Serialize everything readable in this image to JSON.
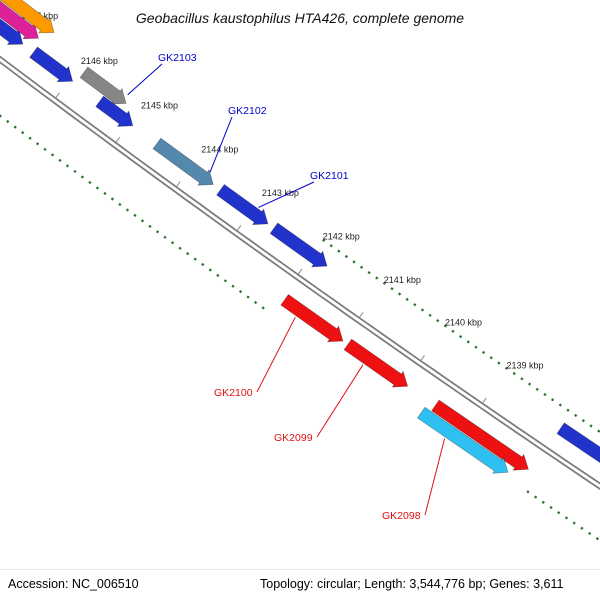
{
  "title": "Geobacillus kaustophilus HTA426, complete genome",
  "status_bar": {
    "accession": "Accession: NC_006510",
    "topology": "Topology: circular; Length: 3,544,776 bp; Genes: 3,611"
  },
  "ruler": {
    "unit_suffix": " kbp",
    "ticks": [
      2147,
      2146,
      2145,
      2144,
      2143,
      2142,
      2141,
      2140,
      2139
    ]
  },
  "colors": {
    "axis": "#7d7d7d",
    "guide_dots": "#267326",
    "label_blue": "#0000cc",
    "label_red": "#e01010"
  },
  "genes": [
    {
      "name": "gene-corner-blue",
      "label": null,
      "label_color": null,
      "color": "#2233cc",
      "rail": "upper",
      "tier": 0,
      "start_kbp": 2148.3,
      "end_kbp": 2146.78
    },
    {
      "name": "gene-corner-magenta",
      "label": null,
      "label_color": null,
      "color": "#dd2299",
      "rail": "upper",
      "tier": 1,
      "start_kbp": 2148.3,
      "end_kbp": 2146.66
    },
    {
      "name": "gene-corner-orange",
      "label": null,
      "label_color": null,
      "color": "#ff9900",
      "rail": "upper",
      "tier": 2,
      "start_kbp": 2148.3,
      "end_kbp": 2146.54
    },
    {
      "name": "gene-a",
      "label": null,
      "label_color": null,
      "color": "#2233cc",
      "rail": "upper",
      "tier": 0,
      "start_kbp": 2146.6,
      "end_kbp": 2145.95
    },
    {
      "name": "GK2103",
      "label": "GK2103",
      "label_color": "#0000cc",
      "color": "#868686",
      "rail": "upper",
      "tier": 1,
      "start_kbp": 2145.9,
      "end_kbp": 2145.2
    },
    {
      "name": "gene-b",
      "label": null,
      "label_color": null,
      "color": "#2233cc",
      "rail": "upper",
      "tier": 0,
      "start_kbp": 2145.5,
      "end_kbp": 2144.95
    },
    {
      "name": "GK2102",
      "label": "GK2102",
      "label_color": "#0000cc",
      "color": "#5488ad",
      "rail": "upper",
      "tier": 0,
      "start_kbp": 2144.55,
      "end_kbp": 2143.62
    },
    {
      "name": "GK2101",
      "label": "GK2101",
      "label_color": "#0000cc",
      "color": "#2233cc",
      "rail": "upper",
      "tier": 0,
      "start_kbp": 2143.5,
      "end_kbp": 2142.72
    },
    {
      "name": "gene-c",
      "label": null,
      "label_color": null,
      "color": "#2233cc",
      "rail": "upper",
      "tier": 0,
      "start_kbp": 2142.62,
      "end_kbp": 2141.75
    },
    {
      "name": "GK2100",
      "label": "GK2100",
      "label_color": "#e01010",
      "color": "#ee1111",
      "rail": "lower",
      "tier": 0,
      "start_kbp": 2141.95,
      "end_kbp": 2141.0
    },
    {
      "name": "GK2099",
      "label": "GK2099",
      "label_color": "#e01010",
      "color": "#ee1111",
      "rail": "lower",
      "tier": 0,
      "start_kbp": 2140.92,
      "end_kbp": 2139.95
    },
    {
      "name": "gene-red-b",
      "label": null,
      "label_color": null,
      "color": "#ee1111",
      "rail": "lower",
      "tier": 0,
      "start_kbp": 2139.5,
      "end_kbp": 2138.0
    },
    {
      "name": "GK2098",
      "label": "GK2098",
      "label_color": "#e01010",
      "color": "#2ec0f0",
      "rail": "lower",
      "tier": 1,
      "start_kbp": 2139.6,
      "end_kbp": 2138.2
    },
    {
      "name": "gene-d",
      "label": null,
      "label_color": null,
      "color": "#2233cc",
      "rail": "upper",
      "tier": 0,
      "start_kbp": 2137.95,
      "end_kbp": 2136.85
    }
  ]
}
